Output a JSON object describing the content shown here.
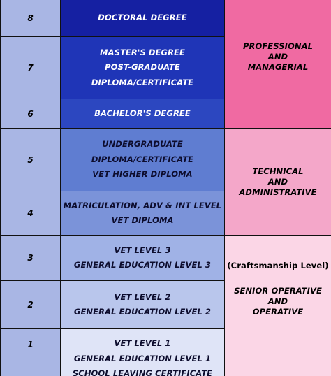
{
  "levels": [
    {
      "num": "8",
      "lines": [
        "DOCTORAL DEGREE"
      ]
    },
    {
      "num": "7",
      "lines": [
        "MASTER'S DEGREE",
        "POST-GRADUATE",
        "DIPLOMA/CERTIFICATE"
      ]
    },
    {
      "num": "6",
      "lines": [
        "BACHELOR'S DEGREE"
      ]
    },
    {
      "num": "5",
      "lines": [
        "UNDERGRADUATE",
        "DIPLOMA/CERTIFICATE",
        "VET HIGHER DIPLOMA"
      ]
    },
    {
      "num": "4",
      "lines": [
        "MATRICULATION, ADV & INT LEVEL",
        "VET DIPLOMA"
      ]
    },
    {
      "num": "3",
      "lines": [
        "VET LEVEL 3",
        "GENERAL EDUCATION LEVEL 3"
      ]
    },
    {
      "num": "2",
      "lines": [
        "VET LEVEL 2",
        "GENERAL EDUCATION LEVEL 2"
      ]
    },
    {
      "num": "1",
      "lines": [
        "VET LEVEL 1",
        "GENERAL EDUCATION LEVEL 1",
        "SCHOOL LEAVING CERTIFICATE"
      ]
    }
  ],
  "categories": {
    "professional": [
      "PROFESSIONAL",
      "AND",
      "MANAGERIAL"
    ],
    "technical": [
      "TECHNICAL",
      "AND",
      "ADMINISTRATIVE"
    ],
    "craft": {
      "subtitle": "(Craftsmanship Level)",
      "lines": [
        "SENIOR OPERATIVE",
        "AND",
        "OPERATIVE"
      ]
    }
  },
  "colors": {
    "number_column": "#a9b6e4",
    "level_8": "#1520a2",
    "level_7": "#1f35b7",
    "level_6": "#2c47c0",
    "level_5": "#5f7dd1",
    "level_4": "#7b93d9",
    "level_3": "#a0b2e6",
    "level_2": "#b9c6ec",
    "level_1": "#dfe4f7",
    "professional": "#f06aa2",
    "technical": "#f4a7c9",
    "craft": "#fbd6e6"
  }
}
